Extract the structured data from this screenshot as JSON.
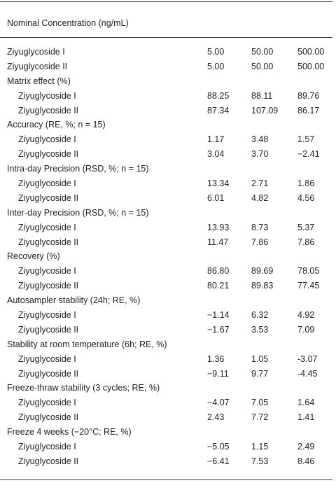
{
  "header": "Nominal Concentration (ng/mL)",
  "rows": [
    {
      "label": "Ziyuglycoside I",
      "values": [
        "5.00",
        "50.00",
        "500.00"
      ]
    },
    {
      "label": "Ziyuglycoside II",
      "values": [
        "5.00",
        "50.00",
        "500.00"
      ]
    },
    {
      "label": "Matrix effect (%)"
    },
    {
      "label": "Ziyuglycoside I",
      "values": [
        "88.25",
        "88.11",
        "89.76"
      ]
    },
    {
      "label": "Ziyuglycoside II",
      "values": [
        "87.34",
        "107.09",
        "86.17"
      ]
    },
    {
      "label": "Accuracy (RE, %; n = 15)"
    },
    {
      "label": "Ziyuglycoside I",
      "values": [
        "1.17",
        "3.48",
        "1.57"
      ]
    },
    {
      "label": "Ziyuglycoside II",
      "values": [
        "3.04",
        "3.70",
        "−2.41"
      ]
    },
    {
      "label": "Intra-day Precision (RSD, %; n = 15)"
    },
    {
      "label": "Ziyuglycoside I",
      "values": [
        "13.34",
        "2.71",
        "1.86"
      ]
    },
    {
      "label": "Ziyuglycoside II",
      "values": [
        "6.01",
        "4.82",
        "4.56"
      ]
    },
    {
      "label": "Inter-day Precision (RSD, %; n = 15)"
    },
    {
      "label": "Ziyuglycoside I",
      "values": [
        "13.93",
        "8.73",
        "5.37"
      ]
    },
    {
      "label": "Ziyuglycoside II",
      "values": [
        "11.47",
        "7.86",
        "7.86"
      ]
    },
    {
      "label": "Recovery (%)"
    },
    {
      "label": "Ziyuglycoside I",
      "values": [
        "86.80",
        "89.69",
        "78.05"
      ]
    },
    {
      "label": "Ziyuglycoside II",
      "values": [
        "80.21",
        "89.83",
        "77.45"
      ]
    },
    {
      "label": "Autosampler stability (24h; RE, %)"
    },
    {
      "label": "Ziyuglycoside I",
      "values": [
        "−1.14",
        "6.32",
        "4.92"
      ]
    },
    {
      "label": "Ziyuglycoside II",
      "values": [
        "−1.67",
        "3.53",
        "7.09"
      ]
    },
    {
      "label": "Stability at room temperature (6h; RE, %)"
    },
    {
      "label": "Ziyuglycoside I",
      "values": [
        "1.36",
        "1.05",
        "-3.07"
      ]
    },
    {
      "label": "Ziyuglycoside II",
      "values": [
        "−9.11",
        "9.77",
        "-4.45"
      ]
    },
    {
      "label": "Freeze-thraw stability (3 cycles; RE, %)"
    },
    {
      "label": "Ziyuglycoside I",
      "values": [
        "−4.07",
        "7.05",
        "1.64"
      ]
    },
    {
      "label": "Ziyuglycoside II",
      "values": [
        "2.43",
        "7.72",
        "1.41"
      ]
    },
    {
      "label": "Freeze 4 weeks (−20°C; RE, %)"
    },
    {
      "label": "Ziyuglycoside I",
      "values": [
        "−5.05",
        "1.15",
        "2.49"
      ]
    },
    {
      "label": "Ziyuglycoside II",
      "values": [
        "−6.41",
        "7.53",
        "8.46"
      ]
    }
  ]
}
